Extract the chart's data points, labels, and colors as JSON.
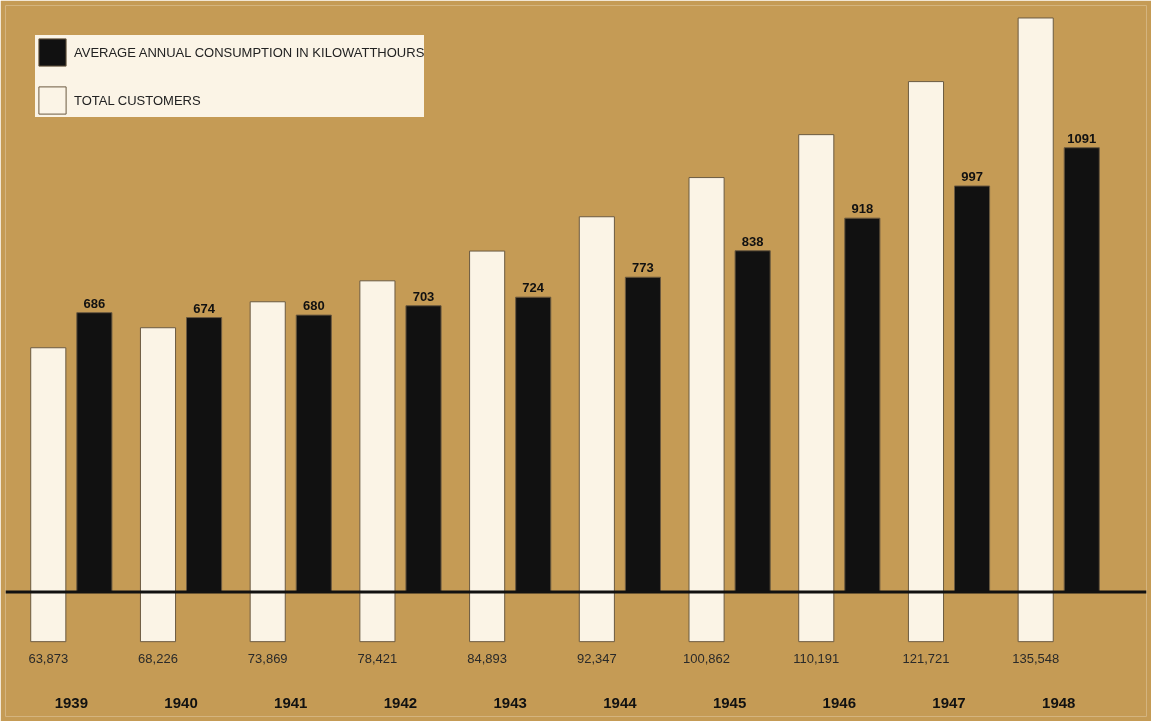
{
  "chart_data": {
    "type": "bar",
    "categories": [
      "1939",
      "1940",
      "1941",
      "1942",
      "1943",
      "1944",
      "1945",
      "1946",
      "1947",
      "1948"
    ],
    "series": [
      {
        "name": "TOTAL CUSTOMERS",
        "color": "#fbf4e6",
        "axis": "y2",
        "values": [
          63873,
          68226,
          73869,
          78421,
          84893,
          92347,
          100862,
          110191,
          121721,
          135548
        ],
        "value_labels": [
          "63,873",
          "68,226",
          "73,869",
          "78,421",
          "84,893",
          "92,347",
          "100,862",
          "110,191",
          "121,721",
          "135,548"
        ]
      },
      {
        "name": "AVERAGE ANNUAL CONSUMPTION IN KILOWATTHOURS",
        "color": "#111111",
        "values": [
          686,
          674,
          680,
          703,
          724,
          773,
          838,
          918,
          997,
          1091
        ],
        "value_labels": [
          "686",
          "674",
          "680",
          "703",
          "724",
          "773",
          "838",
          "918",
          "997",
          "1091"
        ]
      }
    ],
    "legend": "top left",
    "tick_labels": false
  }
}
